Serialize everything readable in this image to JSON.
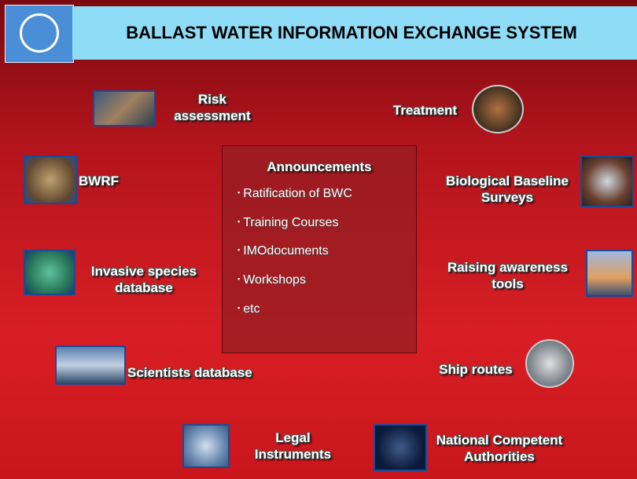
{
  "header": {
    "title": "BALLAST WATER INFORMATION EXCHANGE SYSTEM"
  },
  "nodes": [
    {
      "label": "Risk assessment"
    },
    {
      "label": "Treatment"
    },
    {
      "label": "BWRF"
    },
    {
      "label": "Biological Baseline Surveys"
    },
    {
      "label": "Invasive species database"
    },
    {
      "label": "Raising awareness tools"
    },
    {
      "label": "Scientists database"
    },
    {
      "label": "Ship routes"
    },
    {
      "label": "Legal Instruments"
    },
    {
      "label": "National Competent Authorities"
    }
  ],
  "announcements": {
    "title": "Announcements",
    "items": [
      "Ratification of BWC",
      "Training Courses",
      "IMOdocuments",
      "Workshops",
      "etc"
    ]
  }
}
